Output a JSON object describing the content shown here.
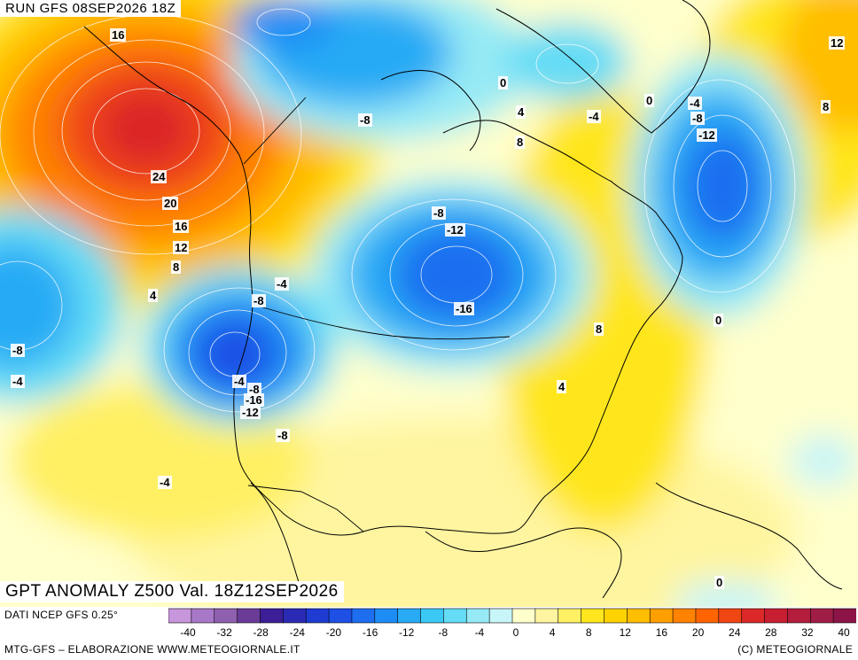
{
  "header": {
    "run_label": "RUN GFS 08SEP2026 18Z"
  },
  "map_title": "GPT ANOMALY Z500 Val. 18Z12SEP2026",
  "footer": {
    "source_note": "DATI NCEP GFS 0.25°",
    "credit_left": "MTG-GFS – ELABORAZIONE WWW.METEOGIORNALE.IT",
    "credit_right": "(C) METEOGIORNALE"
  },
  "colorbar": {
    "tick_labels": [
      "-40",
      "-32",
      "-28",
      "-24",
      "-20",
      "-16",
      "-12",
      "-8",
      "-4",
      "0",
      "4",
      "8",
      "12",
      "16",
      "20",
      "24",
      "28",
      "32",
      "40"
    ],
    "colors": [
      "#c896dc",
      "#a878c8",
      "#9060b0",
      "#6a3c98",
      "#3c1e96",
      "#2a2ab4",
      "#1e3cd2",
      "#1e50e6",
      "#1e6ef0",
      "#1e8cf5",
      "#28aaf5",
      "#3cc8f5",
      "#64dcf5",
      "#96eaf5",
      "#c8f5f8",
      "#ffffcc",
      "#fff5a0",
      "#fff064",
      "#ffe61e",
      "#ffd200",
      "#ffbe00",
      "#ffa000",
      "#ff8200",
      "#ff6400",
      "#f04614",
      "#dc2828",
      "#c81e32",
      "#b41e3c",
      "#a01e46",
      "#8c1446"
    ]
  },
  "contour_labels": [
    "16",
    "24",
    "20",
    "16",
    "12",
    "8",
    "4",
    "-8",
    "-4",
    "-8",
    "-4",
    "-8",
    "0",
    "4",
    "8",
    "-4",
    "-8",
    "-12",
    "-16",
    "8",
    "4",
    "0",
    "-4",
    "-8",
    "-12",
    "0",
    "12",
    "8",
    "-4",
    "-8",
    "-16",
    "-12",
    "-8",
    "-4",
    "0",
    "4",
    "0"
  ]
}
